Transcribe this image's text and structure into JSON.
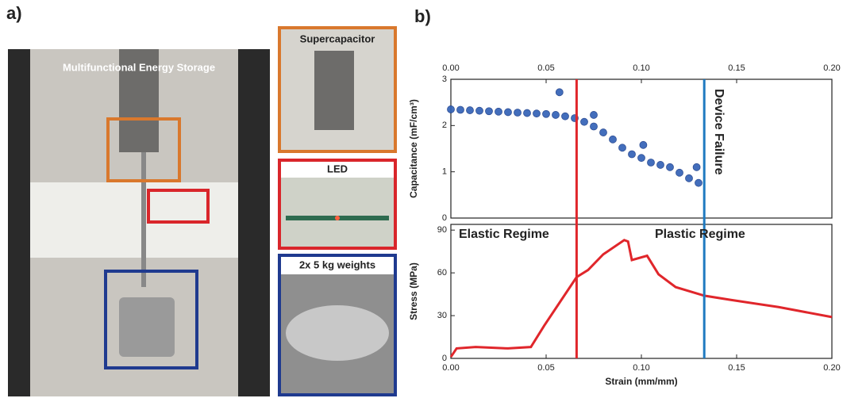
{
  "panels": {
    "a": "a)",
    "b": "b)"
  },
  "photo": {
    "title": "Multifunctional Energy Storage",
    "insets": [
      "Supercapacitor",
      "LED",
      "2x 5 kg weights"
    ]
  },
  "chart_data": [
    {
      "type": "scatter",
      "ylabel": "Capacitance (mF/cm³)",
      "x": [
        0,
        0.005,
        0.01,
        0.015,
        0.02,
        0.025,
        0.03,
        0.035,
        0.04,
        0.045,
        0.05,
        0.055,
        0.06,
        0.065,
        0.07,
        0.075,
        0.08,
        0.085,
        0.09,
        0.095,
        0.1,
        0.105,
        0.11,
        0.115,
        0.12,
        0.125,
        0.13,
        0.057,
        0.075,
        0.101,
        0.129
      ],
      "values": [
        2.35,
        2.34,
        2.33,
        2.32,
        2.31,
        2.3,
        2.29,
        2.28,
        2.27,
        2.26,
        2.25,
        2.23,
        2.2,
        2.16,
        2.08,
        1.98,
        1.85,
        1.7,
        1.52,
        1.38,
        1.3,
        1.2,
        1.15,
        1.1,
        0.98,
        0.86,
        0.76,
        2.72,
        2.23,
        1.58,
        1.1
      ],
      "color": "#2f5fb5",
      "xlim": [
        0,
        0.2
      ],
      "xticks": [
        {
          "value": 0,
          "label": "0.00"
        },
        {
          "value": 0.05,
          "label": "0.05"
        },
        {
          "value": 0.1,
          "label": "0.10"
        },
        {
          "value": 0.15,
          "label": "0.15"
        },
        {
          "value": 0.2,
          "label": "0.20"
        }
      ],
      "ylim": [
        0,
        3
      ],
      "yticks": [
        0,
        1,
        2,
        3
      ],
      "annotations": [
        "Device Failure"
      ]
    },
    {
      "type": "line",
      "ylabel": "Stress (MPa)",
      "xlabel": "Strain (mm/mm)",
      "x": [
        0,
        0.003,
        0.013,
        0.03,
        0.042,
        0.049,
        0.057,
        0.066,
        0.072,
        0.08,
        0.091,
        0.093,
        0.095,
        0.103,
        0.109,
        0.118,
        0.133,
        0.147,
        0.172,
        0.2
      ],
      "values": [
        1,
        7,
        8,
        7,
        8,
        23,
        39,
        57,
        62,
        73,
        83,
        82,
        69,
        72,
        59,
        50,
        44,
        41,
        36,
        29
      ],
      "color": "#e0262b",
      "xlim": [
        0,
        0.2
      ],
      "xticks": [
        {
          "value": 0,
          "label": "0.00"
        },
        {
          "value": 0.05,
          "label": "0.05"
        },
        {
          "value": 0.1,
          "label": "0.10"
        },
        {
          "value": 0.15,
          "label": "0.15"
        },
        {
          "value": 0.2,
          "label": "0.20"
        }
      ],
      "ylim": [
        0,
        94
      ],
      "yticks": [
        0,
        30,
        60,
        90
      ],
      "annotations": [
        "Elastic Regime",
        "Plastic Regime"
      ],
      "vlines": [
        {
          "x": 0.066,
          "color": "#e0262b"
        },
        {
          "x": 0.133,
          "color": "#1f7ac0"
        }
      ]
    }
  ]
}
